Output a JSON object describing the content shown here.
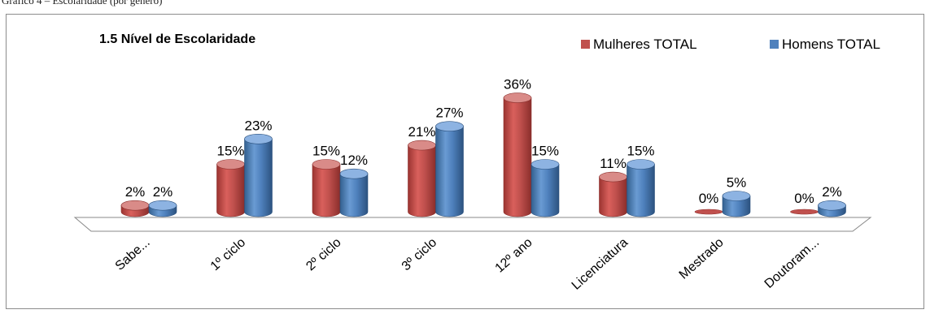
{
  "caption": "Gráfico 4 – Escolaridade (por género)",
  "chart_data": {
    "type": "bar",
    "title": "1.5  Nível de Escolaridade",
    "categories": [
      "Sabe...",
      "1º ciclo",
      "2º ciclo",
      "3º ciclo",
      "12º ano",
      "Licenciatura",
      "Mestrado",
      "Doutoram..."
    ],
    "series": [
      {
        "name": "Mulheres TOTAL",
        "color": "#c0504d",
        "values": [
          2,
          15,
          15,
          21,
          36,
          11,
          0,
          0
        ]
      },
      {
        "name": "Homens TOTAL",
        "color": "#4f81bd",
        "values": [
          2,
          23,
          12,
          27,
          15,
          15,
          5,
          2
        ]
      }
    ],
    "value_suffix": "%",
    "ylim": [
      0,
      40
    ],
    "grid": false,
    "legend": "top-right",
    "style": "3d-cylinder"
  }
}
